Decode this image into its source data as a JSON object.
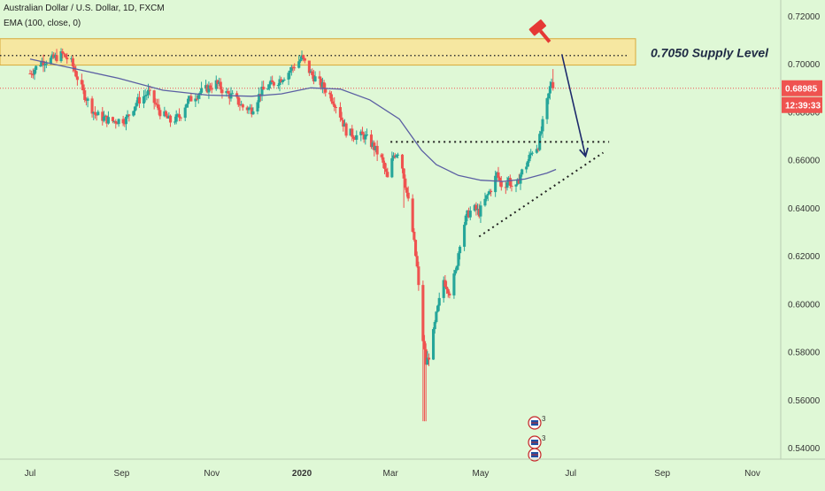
{
  "chart_data": {
    "type": "candlestick",
    "title": "Australian Dollar / U.S. Dollar, 1D, FXCM",
    "indicator_label": "EMA (100, close, 0)",
    "x_tick_labels": [
      "Jul",
      "Sep",
      "Nov",
      "2020",
      "Mar",
      "May",
      "Jul",
      "Sep",
      "Nov"
    ],
    "x_ticks_days": [
      0,
      62,
      123,
      184,
      244,
      305,
      366,
      428,
      489
    ],
    "y_tick_labels": [
      "0.72000",
      "0.70000",
      "0.68000",
      "0.66000",
      "0.64000",
      "0.62000",
      "0.60000",
      "0.58000",
      "0.56000",
      "0.54000"
    ],
    "y_ticks": [
      0.72,
      0.7,
      0.68,
      0.66,
      0.64,
      0.62,
      0.6,
      0.58,
      0.56,
      0.54
    ],
    "ylim": [
      0.5365,
      0.7255
    ],
    "last_price": 0.68985,
    "last_price_label": "0.68985",
    "countdown_label": "12:39:33",
    "supply_label": "0.7050 Supply Level",
    "supply_zone": [
      0.6995,
      0.7105
    ],
    "supply_line": 0.7035,
    "resistance_line": 0.6675,
    "ema_period": 100,
    "colors": {
      "background": "#dff8d6",
      "up": "#26a69a",
      "down": "#ef5350",
      "ema": "#5b5fa3",
      "zone_fill": "#f6e7a1",
      "zone_border": "#d8a93a",
      "price_line": "#ef5350",
      "arrow": "#1d2a6b",
      "axis_text": "#333333"
    },
    "anchors": [
      [
        0,
        0.696
      ],
      [
        8,
        0.701
      ],
      [
        15,
        0.702
      ],
      [
        22,
        0.704
      ],
      [
        28,
        0.7005
      ],
      [
        36,
        0.688
      ],
      [
        44,
        0.679
      ],
      [
        55,
        0.676
      ],
      [
        65,
        0.677
      ],
      [
        72,
        0.684
      ],
      [
        80,
        0.688
      ],
      [
        88,
        0.68
      ],
      [
        95,
        0.676
      ],
      [
        101,
        0.678
      ],
      [
        106,
        0.684
      ],
      [
        112,
        0.687
      ],
      [
        118,
        0.689
      ],
      [
        126,
        0.692
      ],
      [
        132,
        0.688
      ],
      [
        138,
        0.686
      ],
      [
        144,
        0.682
      ],
      [
        150,
        0.681
      ],
      [
        156,
        0.688
      ],
      [
        162,
        0.691
      ],
      [
        168,
        0.693
      ],
      [
        174,
        0.696
      ],
      [
        180,
        0.7
      ],
      [
        184,
        0.7025
      ],
      [
        190,
        0.696
      ],
      [
        196,
        0.692
      ],
      [
        202,
        0.688
      ],
      [
        208,
        0.682
      ],
      [
        214,
        0.672
      ],
      [
        220,
        0.67
      ],
      [
        226,
        0.67
      ],
      [
        232,
        0.666
      ],
      [
        238,
        0.66
      ],
      [
        242,
        0.652
      ],
      [
        246,
        0.662
      ],
      [
        250,
        0.664
      ],
      [
        254,
        0.65
      ],
      [
        258,
        0.635
      ],
      [
        262,
        0.615
      ],
      [
        265,
        0.59
      ],
      [
        268,
        0.575
      ],
      [
        271,
        0.58
      ],
      [
        275,
        0.595
      ],
      [
        280,
        0.61
      ],
      [
        284,
        0.605
      ],
      [
        288,
        0.613
      ],
      [
        292,
        0.63
      ],
      [
        296,
        0.637
      ],
      [
        300,
        0.64
      ],
      [
        304,
        0.638
      ],
      [
        308,
        0.643
      ],
      [
        312,
        0.648
      ],
      [
        316,
        0.654
      ],
      [
        320,
        0.648
      ],
      [
        324,
        0.652
      ],
      [
        328,
        0.646
      ],
      [
        332,
        0.654
      ],
      [
        336,
        0.658
      ],
      [
        340,
        0.664
      ],
      [
        344,
        0.666
      ],
      [
        348,
        0.678
      ],
      [
        352,
        0.69
      ],
      [
        354,
        0.696
      ],
      [
        356,
        0.6898
      ]
    ],
    "ema_points": [
      [
        0,
        0.702
      ],
      [
        30,
        0.698
      ],
      [
        60,
        0.694
      ],
      [
        90,
        0.689
      ],
      [
        120,
        0.687
      ],
      [
        150,
        0.6865
      ],
      [
        170,
        0.6875
      ],
      [
        190,
        0.69
      ],
      [
        210,
        0.6895
      ],
      [
        230,
        0.685
      ],
      [
        250,
        0.677
      ],
      [
        265,
        0.664
      ],
      [
        275,
        0.658
      ],
      [
        290,
        0.6535
      ],
      [
        305,
        0.6515
      ],
      [
        320,
        0.651
      ],
      [
        335,
        0.652
      ],
      [
        350,
        0.6545
      ],
      [
        356,
        0.656
      ]
    ],
    "support_line": [
      [
        304,
        0.628
      ],
      [
        388,
        0.663
      ]
    ],
    "arrow_line": [
      [
        360,
        0.704
      ],
      [
        376,
        0.6615
      ]
    ]
  }
}
